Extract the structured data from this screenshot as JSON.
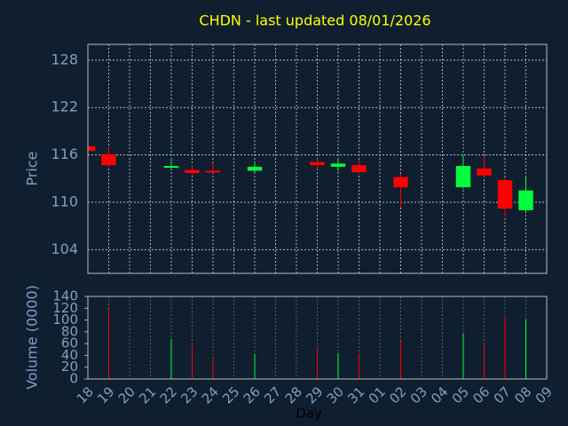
{
  "chart_data": {
    "type": "candlestick",
    "title": "CHDN - last updated 08/01/2026",
    "ylabel": "Price",
    "xlabel": "Day",
    "categories": [
      "18",
      "19",
      "20",
      "21",
      "22",
      "23",
      "24",
      "25",
      "26",
      "27",
      "28",
      "29",
      "30",
      "31",
      "01",
      "02",
      "03",
      "04",
      "05",
      "06",
      "07",
      "08",
      "09"
    ],
    "open": [
      117.1,
      116.1,
      null,
      null,
      114.4,
      114.1,
      114.0,
      null,
      114.0,
      null,
      null,
      115.1,
      114.5,
      114.7,
      null,
      113.2,
      null,
      null,
      111.9,
      114.3,
      112.8,
      109.0,
      null
    ],
    "high": [
      117.1,
      117.0,
      null,
      null,
      115.6,
      114.7,
      115.0,
      null,
      115.2,
      null,
      null,
      115.5,
      115.6,
      115.4,
      null,
      113.6,
      null,
      null,
      116.0,
      115.9,
      113.1,
      113.3,
      null
    ],
    "low": [
      116.5,
      114.5,
      null,
      null,
      114.3,
      113.3,
      113.7,
      null,
      113.8,
      null,
      null,
      114.2,
      113.9,
      113.6,
      null,
      109.3,
      null,
      null,
      111.7,
      113.2,
      108.2,
      108.6,
      null
    ],
    "close": [
      116.5,
      114.7,
      null,
      null,
      114.6,
      113.7,
      113.8,
      null,
      114.5,
      null,
      null,
      114.7,
      114.9,
      113.8,
      null,
      111.9,
      null,
      null,
      114.6,
      113.4,
      109.2,
      111.5,
      null
    ],
    "up_color": "#00ff3c",
    "down_color": "#ff0000",
    "ylim": [
      101,
      130
    ],
    "yticks": [
      104,
      110,
      116,
      122,
      128
    ],
    "grid": true,
    "volume": {
      "ylabel": "Volume (0000)",
      "values": [
        null,
        120,
        null,
        null,
        68,
        59,
        36,
        null,
        42,
        null,
        null,
        51,
        44,
        42,
        null,
        68,
        null,
        null,
        77,
        62,
        105,
        101,
        null
      ],
      "ylim": [
        0,
        140
      ],
      "yticks": [
        0,
        20,
        40,
        60,
        80,
        100,
        120,
        140
      ]
    }
  }
}
